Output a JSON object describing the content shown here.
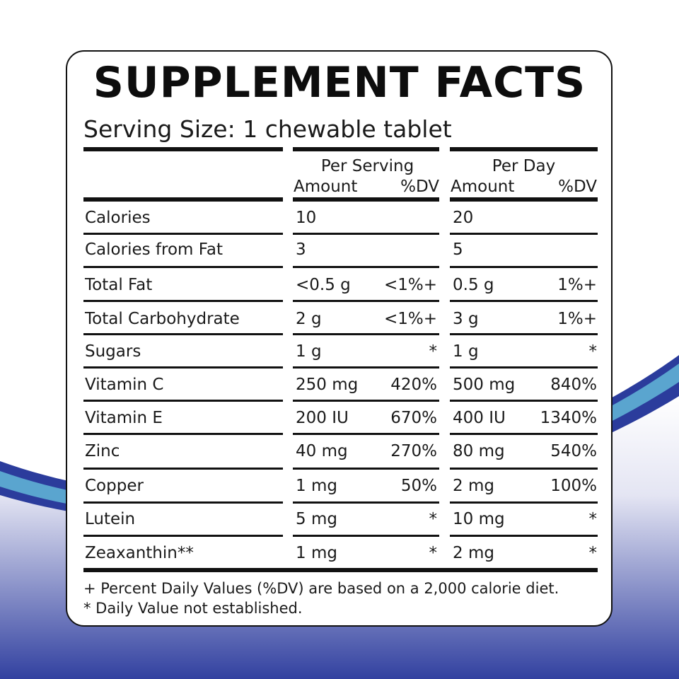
{
  "colors": {
    "stripe_dark": "#2b3c9c",
    "stripe_light": "#5aa5cf",
    "gradient_top": "#e6e7f4",
    "gradient_bottom": "#3240a0"
  },
  "label": {
    "title": "SUPPLEMENT FACTS",
    "serving_size": "Serving Size: 1 chewable tablet",
    "per_serving_header": "Per Serving",
    "per_day_header": "Per Day",
    "amount_label": "Amount",
    "dv_label": "%DV",
    "rows": [
      {
        "name": "Calories",
        "serving_amount": "10",
        "serving_dv": "",
        "day_amount": "20",
        "day_dv": ""
      },
      {
        "name": "Calories from Fat",
        "serving_amount": "3",
        "serving_dv": "",
        "day_amount": "5",
        "day_dv": ""
      },
      {
        "name": "Total Fat",
        "serving_amount": "<0.5 g",
        "serving_dv": "<1%+",
        "day_amount": "0.5 g",
        "day_dv": "1%+"
      },
      {
        "name": "Total Carbohydrate",
        "serving_amount": "2 g",
        "serving_dv": "<1%+",
        "day_amount": "3 g",
        "day_dv": "1%+"
      },
      {
        "name": "Sugars",
        "serving_amount": "1 g",
        "serving_dv": "*",
        "day_amount": "1 g",
        "day_dv": "*"
      },
      {
        "name": "Vitamin C",
        "serving_amount": "250 mg",
        "serving_dv": "420%",
        "day_amount": "500 mg",
        "day_dv": "840%"
      },
      {
        "name": "Vitamin E",
        "serving_amount": "200 IU",
        "serving_dv": "670%",
        "day_amount": "400 IU",
        "day_dv": "1340%"
      },
      {
        "name": "Zinc",
        "serving_amount": "40 mg",
        "serving_dv": "270%",
        "day_amount": "80 mg",
        "day_dv": "540%"
      },
      {
        "name": "Copper",
        "serving_amount": "1 mg",
        "serving_dv": "50%",
        "day_amount": "2 mg",
        "day_dv": "100%"
      },
      {
        "name": "Lutein",
        "serving_amount": "5 mg",
        "serving_dv": "*",
        "day_amount": "10 mg",
        "day_dv": "*"
      },
      {
        "name": "Zeaxanthin**",
        "serving_amount": "1 mg",
        "serving_dv": "*",
        "day_amount": "2 mg",
        "day_dv": "*"
      }
    ],
    "footnotes": [
      "+ Percent Daily Values (%DV) are based on a 2,000 calorie diet.",
      "* Daily Value not established."
    ]
  }
}
